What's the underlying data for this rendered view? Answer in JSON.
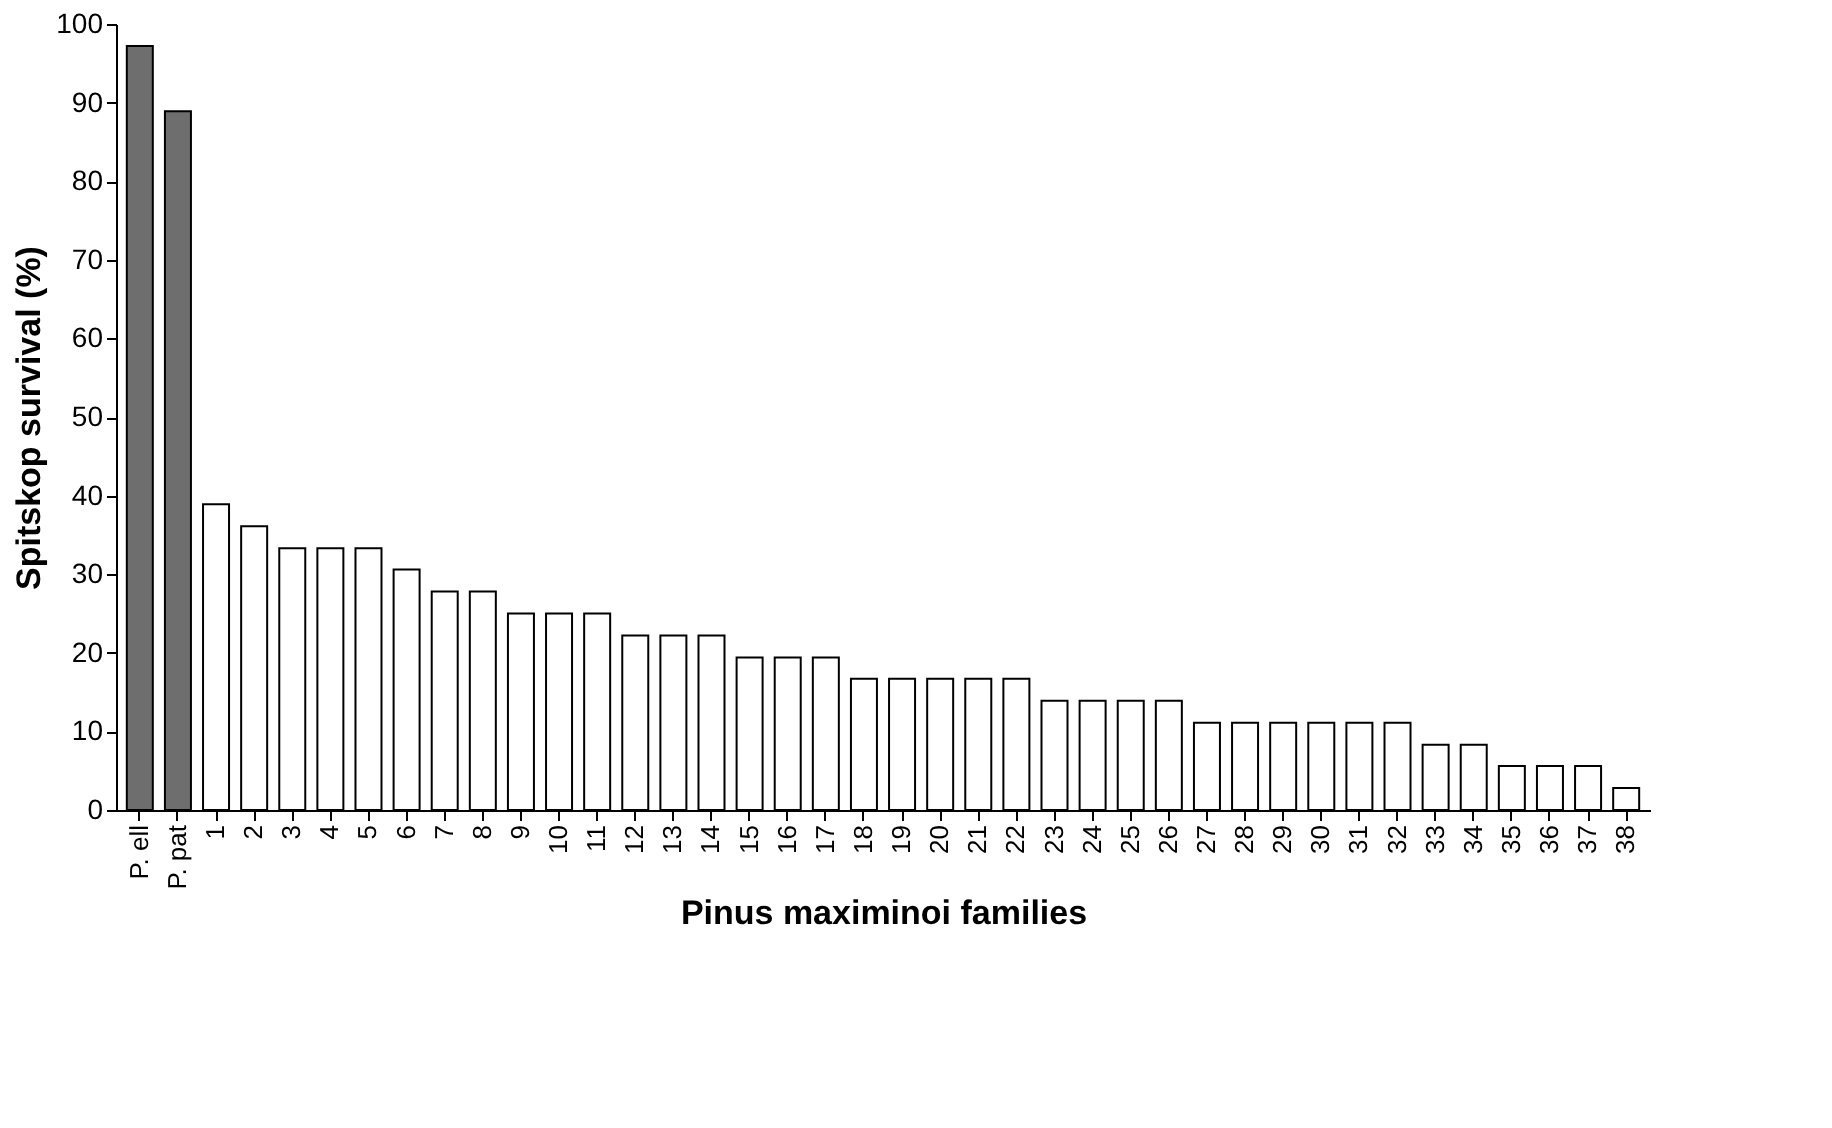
{
  "chart_data": {
    "type": "bar",
    "xlabel": "Pinus maximinoi families",
    "ylabel": "Spitskop survival (%)",
    "categories": [
      "P. ell",
      "P. pat",
      "1",
      "2",
      "3",
      "4",
      "5",
      "6",
      "7",
      "8",
      "9",
      "10",
      "11",
      "12",
      "13",
      "14",
      "15",
      "16",
      "17",
      "18",
      "19",
      "20",
      "21",
      "22",
      "23",
      "24",
      "25",
      "26",
      "27",
      "28",
      "29",
      "30",
      "31",
      "32",
      "33",
      "34",
      "35",
      "36",
      "37",
      "38"
    ],
    "values": [
      97.2,
      88.9,
      38.9,
      36.1,
      33.3,
      33.3,
      33.3,
      30.6,
      27.8,
      27.8,
      25.0,
      25.0,
      25.0,
      22.2,
      22.2,
      22.2,
      19.4,
      19.4,
      19.4,
      16.7,
      16.7,
      16.7,
      16.7,
      16.7,
      13.9,
      13.9,
      13.9,
      13.9,
      11.1,
      11.1,
      11.1,
      11.1,
      11.1,
      11.1,
      8.3,
      8.3,
      5.6,
      5.6,
      5.6,
      2.8
    ],
    "colors": [
      "#6e6e6e",
      "#6e6e6e",
      "#ffffff",
      "#ffffff",
      "#ffffff",
      "#ffffff",
      "#ffffff",
      "#ffffff",
      "#ffffff",
      "#ffffff",
      "#ffffff",
      "#ffffff",
      "#ffffff",
      "#ffffff",
      "#ffffff",
      "#ffffff",
      "#ffffff",
      "#ffffff",
      "#ffffff",
      "#ffffff",
      "#ffffff",
      "#ffffff",
      "#ffffff",
      "#ffffff",
      "#ffffff",
      "#ffffff",
      "#ffffff",
      "#ffffff",
      "#ffffff",
      "#ffffff",
      "#ffffff",
      "#ffffff",
      "#ffffff",
      "#ffffff",
      "#ffffff",
      "#ffffff",
      "#ffffff",
      "#ffffff",
      "#ffffff",
      "#ffffff"
    ],
    "ylim": [
      0,
      100
    ],
    "yticks": [
      0,
      10,
      20,
      30,
      40,
      50,
      60,
      70,
      80,
      90,
      100
    ],
    "grid": false
  }
}
